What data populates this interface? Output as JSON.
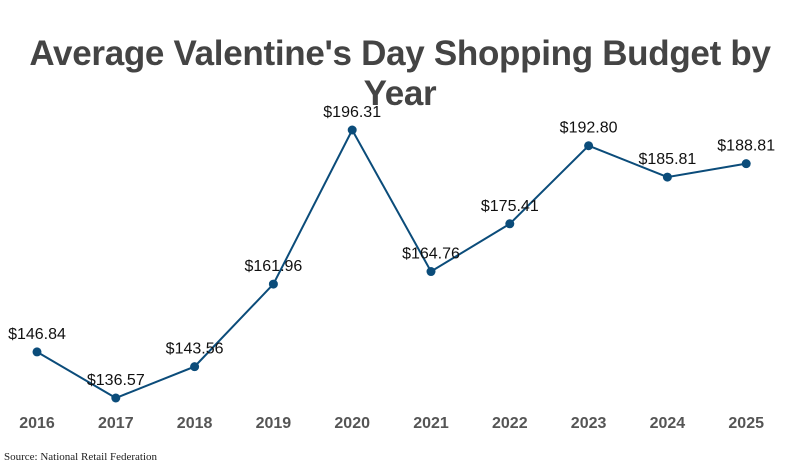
{
  "title": "Average Valentine's Day Shopping Budget by Year",
  "source": "Source: National Retail Federation",
  "colors": {
    "line": "#0b4c7a",
    "marker": "#0b4c7a",
    "title": "#444444",
    "labels": "#111111",
    "ticks": "#555555"
  },
  "chart_data": {
    "type": "line",
    "title": "Average Valentine's Day Shopping Budget by Year",
    "xlabel": "",
    "ylabel": "",
    "categories": [
      "2016",
      "2017",
      "2018",
      "2019",
      "2020",
      "2021",
      "2022",
      "2023",
      "2024",
      "2025"
    ],
    "series": [
      {
        "name": "Average Budget",
        "values": [
          146.84,
          136.57,
          143.56,
          161.96,
          196.31,
          164.76,
          175.41,
          192.8,
          185.81,
          188.81
        ]
      }
    ],
    "data_labels": [
      "$146.84",
      "$136.57",
      "$143.56",
      "$161.96",
      "$196.31",
      "$164.76",
      "$175.41",
      "$192.80",
      "$185.81",
      "$188.81"
    ],
    "ylim": [
      136.57,
      196.31
    ],
    "grid": false,
    "legend": "none"
  }
}
